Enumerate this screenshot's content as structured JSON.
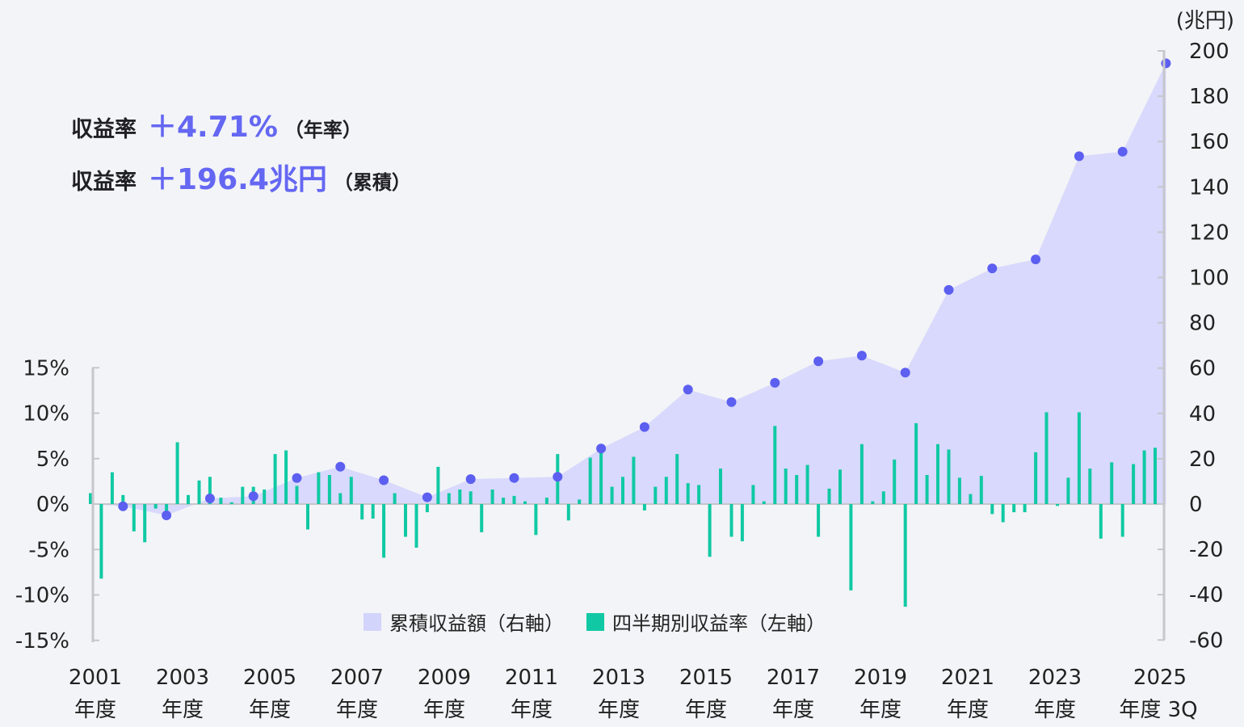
{
  "stats": [
    {
      "label": "収益率",
      "value": "＋4.71%",
      "note": "（年率）"
    },
    {
      "label": "収益率",
      "value": "＋196.4兆円",
      "note": "（累積）"
    }
  ],
  "colors": {
    "area": "#d8d9fc",
    "dot": "#5c5ff0",
    "bar": "#10c9a4",
    "axis": "#c6c6cc"
  },
  "chart_data": {
    "type": "bar+area",
    "left_axis": {
      "ticks": [
        "15%",
        "10%",
        "5%",
        "0%",
        "-5%",
        "-10%",
        "-15%"
      ],
      "ylim": [
        -15,
        15
      ]
    },
    "right_axis": {
      "unit": "(兆円)",
      "ticks": [
        "200",
        "180",
        "160",
        "140",
        "120",
        "100",
        "80",
        "60",
        "40",
        "20",
        "0",
        "-20",
        "-40",
        "-60"
      ],
      "ylim": [
        -60,
        200
      ]
    },
    "x_labels": [
      {
        "top": "2001",
        "bottom": "年度"
      },
      {
        "top": "2003",
        "bottom": "年度"
      },
      {
        "top": "2005",
        "bottom": "年度"
      },
      {
        "top": "2007",
        "bottom": "年度"
      },
      {
        "top": "2009",
        "bottom": "年度"
      },
      {
        "top": "2011",
        "bottom": "年度"
      },
      {
        "top": "2013",
        "bottom": "年度"
      },
      {
        "top": "2015",
        "bottom": "年度"
      },
      {
        "top": "2017",
        "bottom": "年度"
      },
      {
        "top": "2019",
        "bottom": "年度"
      },
      {
        "top": "2021",
        "bottom": "年度"
      },
      {
        "top": "2023",
        "bottom": "年度"
      },
      {
        "top": "2025",
        "bottom": "年度 3Q"
      }
    ],
    "series": [
      {
        "name": "累積収益額（右軸）",
        "fiscal_years": [
          "2001",
          "2002",
          "2003",
          "2004",
          "2005",
          "2006",
          "2007",
          "2008",
          "2009",
          "2010",
          "2011",
          "2012",
          "2013",
          "2014",
          "2015",
          "2016",
          "2017",
          "2018",
          "2019",
          "2020",
          "2021",
          "2022",
          "2023",
          "2024",
          "2025 3Q"
        ],
        "values": [
          -1,
          -5,
          2.5,
          3.5,
          11.5,
          16.5,
          10.5,
          3,
          11,
          11.5,
          12,
          24.5,
          34,
          50.5,
          45,
          53.5,
          63,
          65.5,
          58,
          94.5,
          104,
          108,
          153.5,
          155.5,
          194.5
        ]
      },
      {
        "name": "四半期別収益率（左軸）",
        "values": [
          1.2,
          -8.2,
          3.5,
          1.0,
          -3.0,
          -4.2,
          -0.5,
          -1.0,
          6.8,
          1.0,
          2.6,
          3.0,
          0.7,
          0.2,
          1.9,
          1.9,
          1.6,
          5.5,
          5.9,
          2.0,
          -2.8,
          3.5,
          3.2,
          1.2,
          3.0,
          -1.7,
          -1.6,
          -5.9,
          1.2,
          -3.6,
          -4.8,
          -0.9,
          4.1,
          1.2,
          1.6,
          1.4,
          -3.1,
          1.6,
          0.7,
          0.9,
          0.3,
          -3.4,
          0.7,
          5.5,
          -1.8,
          0.5,
          5.1,
          5.8,
          1.9,
          3.0,
          5.2,
          -0.7,
          1.9,
          3.0,
          5.5,
          2.3,
          2.1,
          -5.8,
          3.9,
          -3.6,
          -4.1,
          2.1,
          0.3,
          8.6,
          3.9,
          3.2,
          4.3,
          -3.6,
          1.7,
          3.8,
          -9.5,
          6.6,
          0.3,
          1.4,
          4.9,
          -11.3,
          8.9,
          3.2,
          6.6,
          6.0,
          2.9,
          1.1,
          3.1,
          -1.1,
          -2.0,
          -0.9,
          -0.9,
          5.7,
          10.1,
          -0.2,
          2.9,
          10.1,
          3.9,
          -3.8,
          4.6,
          -3.6,
          4.4,
          5.9,
          6.2
        ]
      }
    ]
  }
}
